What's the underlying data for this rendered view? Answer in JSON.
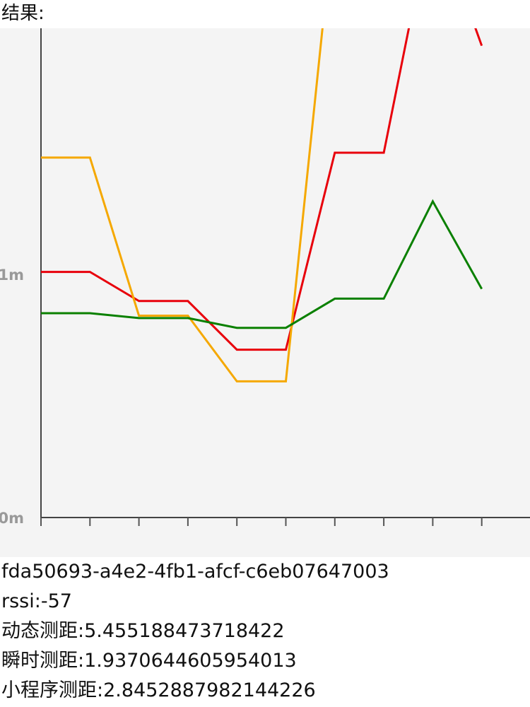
{
  "result_label": "结果:",
  "info": {
    "uuid": "fda50693-a4e2-4fb1-afcf-c6eb07647003",
    "rssi_label": "rssi:",
    "rssi_value": "-57",
    "dynamic_label": "动态测距:",
    "dynamic_value": "5.455188473718422",
    "instant_label": "瞬时测距:",
    "instant_value": "1.9370644605954013",
    "miniprogram_label": "小程序测距:",
    "miniprogram_value": "2.8452887982144226"
  },
  "chart_data": {
    "type": "line",
    "y_ticks": [
      {
        "value": 0,
        "label": "0m"
      },
      {
        "value": 1,
        "label": "1m"
      }
    ],
    "ylim": [
      0,
      1.9
    ],
    "x_count": 10,
    "grid": false,
    "series": [
      {
        "color": "#e8000b",
        "values": [
          1.01,
          1.01,
          0.89,
          0.89,
          0.69,
          0.69,
          1.5,
          1.5,
          2.5,
          1.94
        ]
      },
      {
        "color": "#f5a800",
        "values": [
          1.48,
          1.48,
          0.83,
          0.83,
          0.56,
          0.56,
          2.5,
          null,
          null,
          null
        ]
      },
      {
        "color": "#0a8000",
        "values": [
          0.84,
          0.84,
          0.82,
          0.82,
          0.78,
          0.78,
          0.9,
          0.9,
          1.3,
          0.94
        ]
      }
    ]
  }
}
